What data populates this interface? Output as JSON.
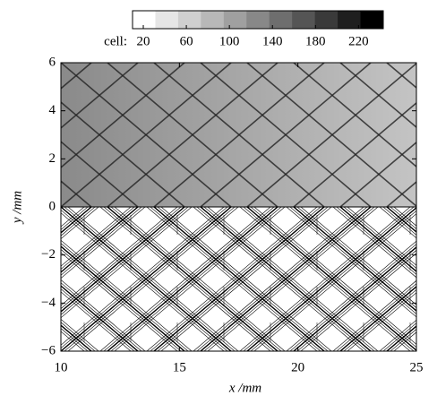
{
  "chart_data": {
    "type": "heatmap",
    "colorbar": {
      "label": "cell:",
      "lim": [
        10,
        243
      ],
      "ticks": [
        20,
        60,
        100,
        140,
        180,
        220
      ],
      "colors": [
        "#ffffff",
        "#e6e6e6",
        "#cfcfcf",
        "#b8b8b8",
        "#a0a0a0",
        "#888888",
        "#6e6e6e",
        "#555555",
        "#3a3a3a",
        "#1f1f1f",
        "#000000"
      ]
    },
    "xlabel": "x /mm",
    "ylabel": "y /mm",
    "xlim": [
      10,
      25
    ],
    "xticks": [
      10,
      15,
      20,
      25
    ],
    "ylim": [
      -6,
      6
    ],
    "yticks": [
      {
        "value": -6,
        "label": "−6"
      },
      {
        "value": -4,
        "label": "−4"
      },
      {
        "value": -2,
        "label": "−2"
      },
      0,
      2,
      4,
      6
    ]
  }
}
